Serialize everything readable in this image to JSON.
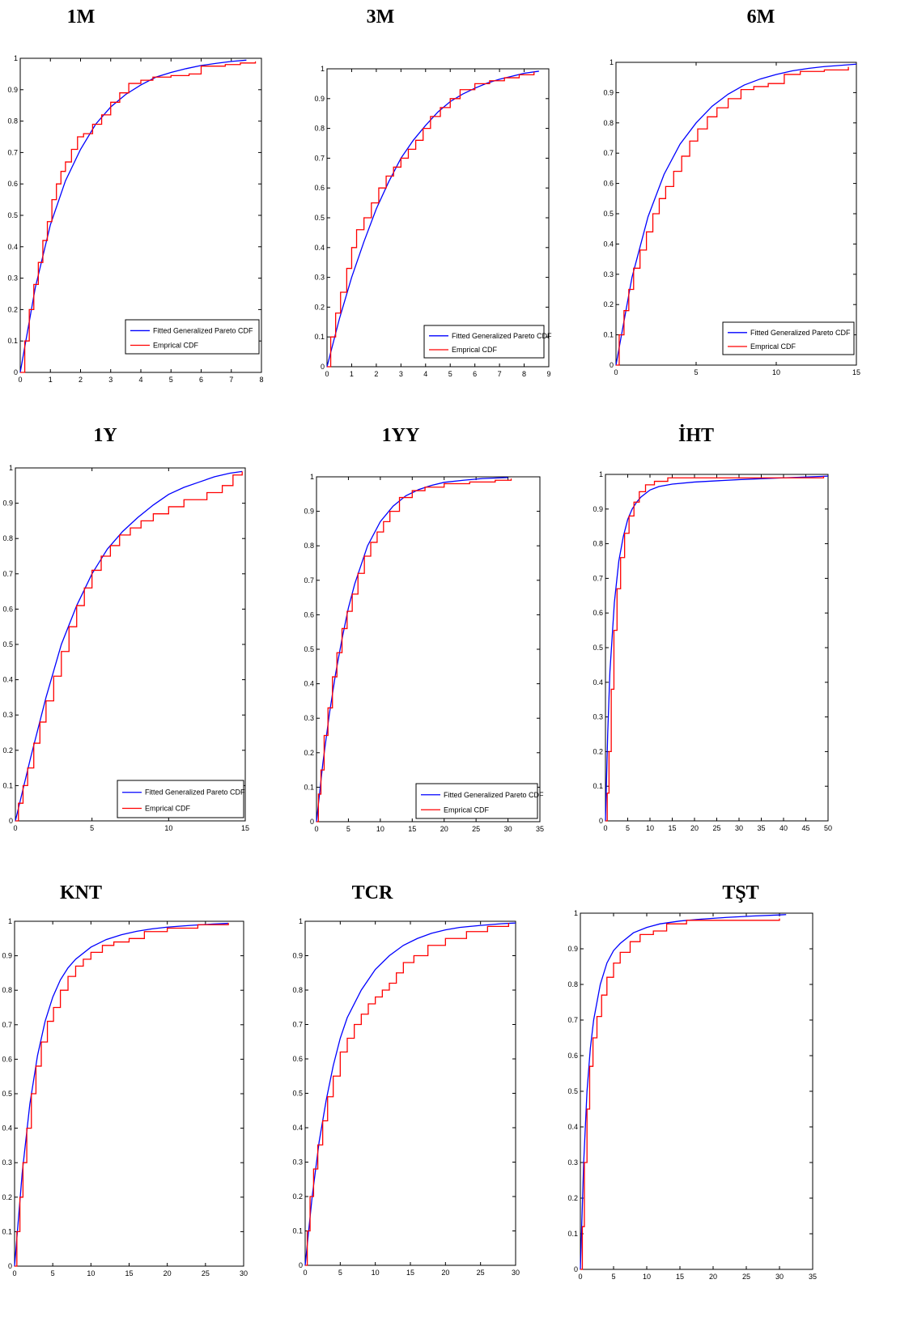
{
  "figure": {
    "legend_labels": [
      "Fitted Generalized Pareto CDF",
      "Emprical CDF"
    ],
    "colors": {
      "fitted": "#0000ff",
      "empirical": "#ff0000",
      "axis": "#000000"
    }
  },
  "chart_data": [
    {
      "type": "line",
      "title": "1M",
      "xlim": [
        0,
        8
      ],
      "ylim": [
        0,
        1
      ],
      "x_step": 1,
      "legend": "bottom-right",
      "series": [
        {
          "name": "Fitted Generalized Pareto CDF",
          "x": [
            0,
            0.5,
            1,
            1.5,
            2,
            2.5,
            3,
            3.5,
            4,
            4.5,
            5,
            5.5,
            6,
            6.5,
            7,
            7.5
          ],
          "y": [
            0,
            0.27,
            0.47,
            0.61,
            0.71,
            0.79,
            0.845,
            0.885,
            0.915,
            0.94,
            0.955,
            0.967,
            0.977,
            0.984,
            0.99,
            0.994
          ]
        },
        {
          "name": "Emprical CDF",
          "step": true,
          "x": [
            0,
            0.15,
            0.3,
            0.45,
            0.6,
            0.75,
            0.9,
            1.05,
            1.2,
            1.35,
            1.5,
            1.7,
            1.9,
            2.1,
            2.4,
            2.7,
            3.0,
            3.3,
            3.6,
            4.0,
            4.4,
            5.0,
            5.6,
            6.0,
            6.8,
            7.3,
            7.8
          ],
          "y": [
            0,
            0.1,
            0.2,
            0.28,
            0.35,
            0.42,
            0.48,
            0.55,
            0.6,
            0.64,
            0.67,
            0.71,
            0.75,
            0.76,
            0.79,
            0.82,
            0.86,
            0.89,
            0.92,
            0.93,
            0.94,
            0.945,
            0.95,
            0.975,
            0.98,
            0.985,
            0.99
          ]
        }
      ]
    },
    {
      "type": "line",
      "title": "3M",
      "xlim": [
        0,
        9
      ],
      "ylim": [
        0,
        1
      ],
      "x_step": 1,
      "legend": "bottom-right",
      "series": [
        {
          "name": "Fitted Generalized Pareto CDF",
          "x": [
            0,
            0.5,
            1,
            1.5,
            2,
            2.5,
            3,
            3.5,
            4,
            4.5,
            5,
            5.5,
            6,
            6.5,
            7,
            7.5,
            8,
            8.6
          ],
          "y": [
            0,
            0.16,
            0.3,
            0.42,
            0.53,
            0.62,
            0.7,
            0.76,
            0.81,
            0.855,
            0.89,
            0.915,
            0.935,
            0.952,
            0.965,
            0.975,
            0.985,
            0.992
          ]
        },
        {
          "name": "Emprical CDF",
          "step": true,
          "x": [
            0,
            0.15,
            0.35,
            0.55,
            0.8,
            1.0,
            1.2,
            1.5,
            1.8,
            2.1,
            2.4,
            2.7,
            3.0,
            3.3,
            3.6,
            3.9,
            4.2,
            4.6,
            5.0,
            5.4,
            6.0,
            6.6,
            7.2,
            7.8,
            8.4
          ],
          "y": [
            0,
            0.1,
            0.18,
            0.25,
            0.33,
            0.4,
            0.46,
            0.5,
            0.55,
            0.6,
            0.64,
            0.67,
            0.7,
            0.73,
            0.76,
            0.8,
            0.84,
            0.87,
            0.9,
            0.93,
            0.95,
            0.96,
            0.97,
            0.98,
            0.99
          ]
        }
      ]
    },
    {
      "type": "line",
      "title": "6M",
      "xlim": [
        0,
        15
      ],
      "ylim": [
        0,
        1
      ],
      "x_step": 5,
      "legend": "bottom-right",
      "series": [
        {
          "name": "Fitted Generalized Pareto CDF",
          "x": [
            0,
            1,
            2,
            3,
            4,
            5,
            6,
            7,
            8,
            9,
            10,
            11,
            12,
            13,
            14,
            15
          ],
          "y": [
            0,
            0.29,
            0.49,
            0.63,
            0.73,
            0.8,
            0.855,
            0.895,
            0.925,
            0.945,
            0.96,
            0.972,
            0.98,
            0.986,
            0.99,
            0.994
          ]
        },
        {
          "name": "Emprical CDF",
          "step": true,
          "x": [
            0,
            0.2,
            0.5,
            0.8,
            1.1,
            1.5,
            1.9,
            2.3,
            2.7,
            3.1,
            3.6,
            4.1,
            4.6,
            5.1,
            5.7,
            6.3,
            7.0,
            7.8,
            8.6,
            9.5,
            10.5,
            11.5,
            13.0,
            14.5
          ],
          "y": [
            0,
            0.1,
            0.18,
            0.25,
            0.32,
            0.38,
            0.44,
            0.5,
            0.55,
            0.59,
            0.64,
            0.69,
            0.74,
            0.78,
            0.82,
            0.85,
            0.88,
            0.91,
            0.92,
            0.93,
            0.96,
            0.97,
            0.975,
            0.985
          ]
        }
      ]
    },
    {
      "type": "line",
      "title": "1Y",
      "xlim": [
        0,
        15
      ],
      "ylim": [
        0,
        1
      ],
      "x_step": 5,
      "legend": "bottom-right",
      "series": [
        {
          "name": "Fitted Generalized Pareto CDF",
          "x": [
            0,
            1,
            2,
            3,
            4,
            5,
            6,
            7,
            8,
            9,
            10,
            11,
            12,
            13,
            14,
            14.8
          ],
          "y": [
            0,
            0.18,
            0.35,
            0.5,
            0.61,
            0.7,
            0.77,
            0.82,
            0.86,
            0.895,
            0.925,
            0.945,
            0.96,
            0.975,
            0.985,
            0.99
          ]
        },
        {
          "name": "Emprical CDF",
          "step": true,
          "x": [
            0,
            0.2,
            0.5,
            0.8,
            1.2,
            1.6,
            2.0,
            2.5,
            3.0,
            3.5,
            4.0,
            4.5,
            5.0,
            5.6,
            6.2,
            6.8,
            7.5,
            8.2,
            9.0,
            10.0,
            11.0,
            12.5,
            13.5,
            14.2,
            14.8
          ],
          "y": [
            0,
            0.05,
            0.1,
            0.15,
            0.22,
            0.28,
            0.34,
            0.41,
            0.48,
            0.55,
            0.61,
            0.66,
            0.71,
            0.75,
            0.78,
            0.81,
            0.83,
            0.85,
            0.87,
            0.89,
            0.91,
            0.93,
            0.95,
            0.98,
            0.99
          ]
        }
      ]
    },
    {
      "type": "line",
      "title": "1YY",
      "xlim": [
        0,
        35
      ],
      "ylim": [
        0,
        1
      ],
      "x_step": 5,
      "legend": "bottom-right",
      "series": [
        {
          "name": "Fitted Generalized Pareto CDF",
          "x": [
            0,
            1,
            2,
            3,
            4,
            5,
            6,
            8,
            10,
            12,
            14,
            16,
            18,
            20,
            23,
            26,
            30
          ],
          "y": [
            0,
            0.17,
            0.31,
            0.43,
            0.53,
            0.62,
            0.69,
            0.8,
            0.87,
            0.915,
            0.945,
            0.963,
            0.975,
            0.984,
            0.99,
            0.995,
            0.998
          ]
        },
        {
          "name": "Emprical CDF",
          "step": true,
          "x": [
            0,
            0.3,
            0.7,
            1.2,
            1.8,
            2.5,
            3.2,
            4.0,
            4.8,
            5.6,
            6.5,
            7.5,
            8.5,
            9.5,
            10.5,
            11.5,
            13.0,
            15.0,
            17.0,
            20.0,
            24.0,
            28.0,
            30.5
          ],
          "y": [
            0,
            0.08,
            0.15,
            0.25,
            0.33,
            0.42,
            0.49,
            0.56,
            0.61,
            0.66,
            0.72,
            0.77,
            0.81,
            0.84,
            0.87,
            0.9,
            0.94,
            0.96,
            0.97,
            0.98,
            0.985,
            0.99,
            0.995
          ]
        }
      ]
    },
    {
      "type": "line",
      "title": "İHT",
      "xlim": [
        0,
        50
      ],
      "ylim": [
        0,
        1
      ],
      "x_step": 5,
      "legend": "none",
      "series": [
        {
          "name": "Fitted Generalized Pareto CDF",
          "x": [
            0,
            0.5,
            1,
            2,
            3,
            4,
            5,
            6,
            7,
            8,
            10,
            12,
            15,
            20,
            30,
            40,
            50
          ],
          "y": [
            0,
            0.25,
            0.43,
            0.63,
            0.75,
            0.82,
            0.87,
            0.9,
            0.92,
            0.935,
            0.955,
            0.965,
            0.972,
            0.978,
            0.985,
            0.99,
            0.995
          ]
        },
        {
          "name": "Emprical CDF",
          "step": true,
          "x": [
            0,
            0.4,
            0.8,
            1.3,
            1.9,
            2.6,
            3.4,
            4.3,
            5.3,
            6.4,
            7.6,
            9.0,
            11.0,
            14.0,
            20.0,
            30.0,
            40.0,
            49.0
          ],
          "y": [
            0,
            0.08,
            0.2,
            0.38,
            0.55,
            0.67,
            0.76,
            0.83,
            0.88,
            0.92,
            0.95,
            0.97,
            0.98,
            0.99,
            0.99,
            0.99,
            0.99,
            0.995
          ]
        }
      ]
    },
    {
      "type": "line",
      "title": "KNT",
      "xlim": [
        0,
        30
      ],
      "ylim": [
        0,
        1
      ],
      "x_step": 5,
      "legend": "none",
      "series": [
        {
          "name": "Fitted Generalized Pareto CDF",
          "x": [
            0,
            1,
            2,
            3,
            4,
            5,
            6,
            7,
            8,
            10,
            12,
            14,
            16,
            18,
            20,
            23,
            26,
            28
          ],
          "y": [
            0,
            0.27,
            0.47,
            0.61,
            0.71,
            0.78,
            0.83,
            0.865,
            0.89,
            0.925,
            0.947,
            0.961,
            0.971,
            0.978,
            0.983,
            0.988,
            0.992,
            0.994
          ]
        },
        {
          "name": "Emprical CDF",
          "step": true,
          "x": [
            0,
            0.3,
            0.7,
            1.1,
            1.6,
            2.2,
            2.8,
            3.5,
            4.3,
            5.1,
            6.0,
            7.0,
            8.0,
            9.0,
            10.0,
            11.5,
            13.0,
            15.0,
            17.0,
            20.0,
            24.0,
            28.0
          ],
          "y": [
            0,
            0.1,
            0.2,
            0.3,
            0.4,
            0.5,
            0.58,
            0.65,
            0.71,
            0.75,
            0.8,
            0.84,
            0.87,
            0.89,
            0.91,
            0.93,
            0.94,
            0.95,
            0.97,
            0.98,
            0.99,
            0.995
          ]
        }
      ]
    },
    {
      "type": "line",
      "title": "TCR",
      "xlim": [
        0,
        30
      ],
      "ylim": [
        0,
        1
      ],
      "x_step": 5,
      "legend": "none",
      "series": [
        {
          "name": "Fitted Generalized Pareto CDF",
          "x": [
            0,
            1,
            2,
            3,
            4,
            5,
            6,
            8,
            10,
            12,
            14,
            16,
            18,
            20,
            22,
            25,
            28,
            30
          ],
          "y": [
            0,
            0.2,
            0.36,
            0.48,
            0.58,
            0.66,
            0.72,
            0.8,
            0.86,
            0.9,
            0.93,
            0.95,
            0.965,
            0.975,
            0.982,
            0.988,
            0.993,
            0.995
          ]
        },
        {
          "name": "Emprical CDF",
          "step": true,
          "x": [
            0,
            0.3,
            0.7,
            1.2,
            1.8,
            2.5,
            3.2,
            4.0,
            5.0,
            6.0,
            7.0,
            8.0,
            9.0,
            10.0,
            11.0,
            12.0,
            13.0,
            14.0,
            15.5,
            17.5,
            20.0,
            23.0,
            26.0,
            29.0
          ],
          "y": [
            0,
            0.1,
            0.2,
            0.28,
            0.35,
            0.42,
            0.49,
            0.55,
            0.62,
            0.66,
            0.7,
            0.73,
            0.76,
            0.78,
            0.8,
            0.82,
            0.85,
            0.88,
            0.9,
            0.93,
            0.95,
            0.97,
            0.985,
            0.995
          ]
        }
      ]
    },
    {
      "type": "line",
      "title": "TŞT",
      "xlim": [
        0,
        35
      ],
      "ylim": [
        0,
        1
      ],
      "x_step": 5,
      "legend": "none",
      "series": [
        {
          "name": "Fitted Generalized Pareto CDF",
          "x": [
            0,
            0.5,
            1,
            1.5,
            2,
            3,
            4,
            5,
            6,
            8,
            10,
            12,
            15,
            18,
            22,
            26,
            30,
            31
          ],
          "y": [
            0,
            0.3,
            0.5,
            0.62,
            0.7,
            0.8,
            0.86,
            0.895,
            0.915,
            0.945,
            0.96,
            0.97,
            0.978,
            0.983,
            0.988,
            0.992,
            0.995,
            0.996
          ]
        },
        {
          "name": "Emprical CDF",
          "step": true,
          "x": [
            0,
            0.3,
            0.6,
            1.0,
            1.4,
            1.9,
            2.5,
            3.2,
            4.0,
            5.0,
            6.0,
            7.5,
            9.0,
            11.0,
            13.0,
            16.0,
            20.0,
            25.0,
            30.0
          ],
          "y": [
            0,
            0.12,
            0.3,
            0.45,
            0.57,
            0.65,
            0.71,
            0.77,
            0.82,
            0.86,
            0.89,
            0.92,
            0.94,
            0.95,
            0.97,
            0.98,
            0.98,
            0.98,
            0.985
          ]
        }
      ]
    }
  ]
}
